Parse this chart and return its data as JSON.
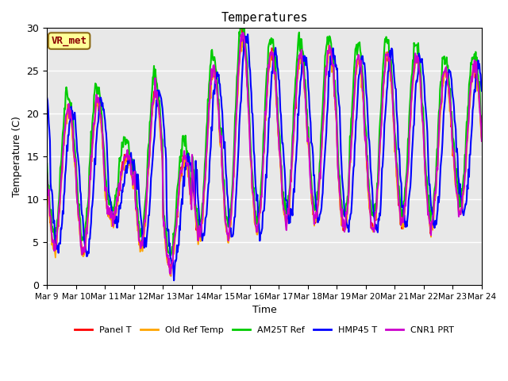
{
  "title": "Temperatures",
  "xlabel": "Time",
  "ylabel": "Temperature (C)",
  "ylim": [
    0,
    30
  ],
  "yticks": [
    0,
    5,
    10,
    15,
    20,
    25,
    30
  ],
  "start_day": 9,
  "end_day": 24,
  "annotation_text": "VR_met",
  "annotation_color": "#8B0000",
  "annotation_bg": "#FFFF99",
  "bg_color": "#E8E8E8",
  "line_colors": {
    "Panel T": "#FF0000",
    "Old Ref Temp": "#FFA500",
    "AM25T Ref": "#00CC00",
    "HMP45 T": "#0000FF",
    "CNR1 PRT": "#CC00CC"
  },
  "line_widths": {
    "Panel T": 1.2,
    "Old Ref Temp": 1.2,
    "AM25T Ref": 1.5,
    "HMP45 T": 1.5,
    "CNR1 PRT": 1.5
  },
  "n_points_per_day": 48,
  "daily_min": [
    4.5,
    3.8,
    7.5,
    4.5,
    2.0,
    5.5,
    5.5,
    6.5,
    7.5,
    7.8,
    6.5,
    6.5,
    7.2,
    7.0,
    8.5
  ],
  "daily_max": [
    20.5,
    21.5,
    15.0,
    22.5,
    15.0,
    25.0,
    29.0,
    27.0,
    26.5,
    27.5,
    26.5,
    27.0,
    26.5,
    25.0,
    25.5
  ]
}
